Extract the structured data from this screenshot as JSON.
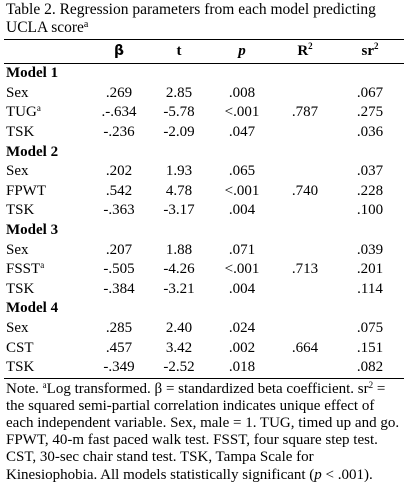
{
  "caption": {
    "text": "Table 2. Regression parameters from each model predicting UCLA score",
    "sup": "a"
  },
  "columns": [
    {
      "key": "beta",
      "label": "β"
    },
    {
      "key": "t",
      "label": "t"
    },
    {
      "key": "p",
      "label": "p"
    },
    {
      "key": "r2",
      "label": "R",
      "sup": "2"
    },
    {
      "key": "sr2",
      "label": "sr",
      "sup": "2"
    }
  ],
  "models": [
    {
      "title": "Model 1",
      "r2": ".787",
      "rows": [
        {
          "var": "Sex",
          "beta": ".269",
          "t": "2.85",
          "p": ".008",
          "sr2": ".067"
        },
        {
          "var": "TUG",
          "var_sup": "a",
          "beta": ".-.634",
          "t": "-5.78",
          "p": "<.001",
          "sr2": ".275"
        },
        {
          "var": "TSK",
          "beta": "-.236",
          "t": "-2.09",
          "p": ".047",
          "sr2": ".036"
        }
      ]
    },
    {
      "title": "Model 2",
      "r2": ".740",
      "rows": [
        {
          "var": "Sex",
          "beta": ".202",
          "t": "1.93",
          "p": ".065",
          "sr2": ".037"
        },
        {
          "var": "FPWT",
          "beta": ".542",
          "t": "4.78",
          "p": "<.001",
          "sr2": ".228"
        },
        {
          "var": "TSK",
          "beta": "-.363",
          "t": "-3.17",
          "p": ".004",
          "sr2": ".100"
        }
      ]
    },
    {
      "title": "Model 3",
      "r2": ".713",
      "rows": [
        {
          "var": "Sex",
          "beta": ".207",
          "t": "1.88",
          "p": ".071",
          "sr2": ".039"
        },
        {
          "var": "FSST",
          "var_sup": "a",
          "beta": "-.505",
          "t": "-4.26",
          "p": "<.001",
          "sr2": ".201"
        },
        {
          "var": "TSK",
          "beta": "-.384",
          "t": "-3.21",
          "p": ".004",
          "sr2": ".114"
        }
      ]
    },
    {
      "title": "Model 4",
      "r2": ".664",
      "rows": [
        {
          "var": "Sex",
          "beta": ".285",
          "t": "2.40",
          "p": ".024",
          "sr2": ".075"
        },
        {
          "var": "CST",
          "beta": ".457",
          "t": "3.42",
          "p": ".002",
          "sr2": ".151"
        },
        {
          "var": "TSK",
          "beta": "-.349",
          "t": "-2.52",
          "p": ".018",
          "sr2": ".082"
        }
      ]
    }
  ],
  "note": {
    "lead": "Note.",
    "sup_a": "a",
    "part1": "Log transformed. β = standardized beta coefficient. sr",
    "sup_2": "2",
    "part2": " = the squared semi-partial correlation indicates unique effect of each independent variable. Sex, male = 1. TUG, timed up and go. FPWT, 40-m fast paced walk test. FSST, four square step test. CST, 30-sec chair stand test. TSK, Tampa Scale for Kinesiophobia. All models statistically significant (",
    "p_italic": "p",
    "part3": " < .001)."
  }
}
